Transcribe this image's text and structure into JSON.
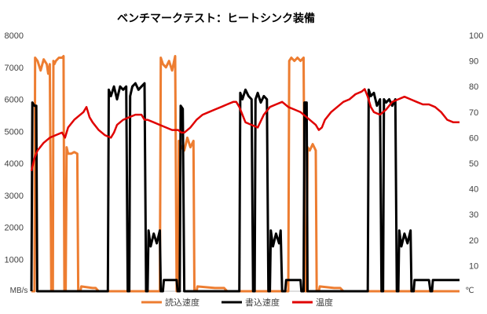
{
  "chart_data": {
    "type": "line",
    "title": "ベンチマークテスト：ヒートシンク装備",
    "left_axis": {
      "unit": "MB/s",
      "ylim": [
        0,
        8000
      ],
      "ticks": [
        "1000",
        "2000",
        "3000",
        "4000",
        "5000",
        "6000",
        "7000",
        "8000"
      ]
    },
    "right_axis": {
      "unit": "℃",
      "ylim": [
        0,
        100
      ],
      "ticks": [
        "10",
        "20",
        "30",
        "40",
        "50",
        "60",
        "70",
        "80",
        "90",
        "100"
      ]
    },
    "grid": false,
    "legend_position": "bottom",
    "series": [
      {
        "name": "読込速度",
        "axis": "left",
        "color": "#ED7D31",
        "points": [
          [
            0,
            0
          ],
          [
            1,
            0
          ],
          [
            1.2,
            7300
          ],
          [
            2,
            7200
          ],
          [
            3,
            6900
          ],
          [
            4,
            7250
          ],
          [
            5,
            7100
          ],
          [
            5.5,
            6800
          ],
          [
            6,
            7100
          ],
          [
            6.5,
            0
          ],
          [
            7,
            0
          ],
          [
            7.2,
            7200
          ],
          [
            7.5,
            7100
          ],
          [
            8,
            7200
          ],
          [
            9,
            7300
          ],
          [
            10,
            7300
          ],
          [
            10.5,
            7350
          ],
          [
            10.8,
            0
          ],
          [
            11.2,
            0
          ],
          [
            11.5,
            4500
          ],
          [
            12,
            4300
          ],
          [
            13,
            4300
          ],
          [
            14,
            4350
          ],
          [
            15,
            4300
          ],
          [
            15.3,
            0
          ],
          [
            16,
            0
          ],
          [
            16.3,
            150
          ],
          [
            20,
            100
          ],
          [
            21,
            100
          ],
          [
            22,
            0
          ],
          [
            42,
            0
          ],
          [
            42.3,
            7300
          ],
          [
            43,
            7100
          ],
          [
            44,
            7000
          ],
          [
            45,
            7200
          ],
          [
            46,
            6900
          ],
          [
            47,
            7350
          ],
          [
            47.5,
            0
          ],
          [
            48,
            0
          ],
          [
            48.2,
            4700
          ],
          [
            49,
            4500
          ],
          [
            50,
            4400
          ],
          [
            51,
            4800
          ],
          [
            52,
            4500
          ],
          [
            53,
            4700
          ],
          [
            53.3,
            0
          ],
          [
            54,
            0
          ],
          [
            54.3,
            150
          ],
          [
            60,
            100
          ],
          [
            63,
            100
          ],
          [
            64,
            0
          ],
          [
            84,
            0
          ],
          [
            84.3,
            7200
          ],
          [
            85,
            7300
          ],
          [
            86,
            7200
          ],
          [
            87,
            7300
          ],
          [
            88,
            7200
          ],
          [
            89,
            7300
          ],
          [
            89.5,
            0
          ],
          [
            90,
            0
          ],
          [
            90.3,
            4500
          ],
          [
            91,
            4400
          ],
          [
            92,
            4600
          ],
          [
            93,
            4400
          ],
          [
            93.3,
            0
          ],
          [
            94,
            0
          ],
          [
            94.3,
            150
          ],
          [
            99,
            100
          ],
          [
            101,
            100
          ],
          [
            102,
            0
          ],
          [
            140,
            0
          ]
        ]
      },
      {
        "name": "書込速度",
        "axis": "left",
        "color": "#000000",
        "points": [
          [
            0,
            0
          ],
          [
            0.3,
            5900
          ],
          [
            1,
            5800
          ],
          [
            1.6,
            5800
          ],
          [
            1.9,
            0
          ],
          [
            25,
            0
          ],
          [
            25.3,
            6300
          ],
          [
            26,
            6100
          ],
          [
            27,
            6400
          ],
          [
            28,
            6000
          ],
          [
            29,
            6400
          ],
          [
            30,
            6300
          ],
          [
            31,
            6400
          ],
          [
            31.5,
            0
          ],
          [
            32,
            0
          ],
          [
            32.3,
            6100
          ],
          [
            33,
            6400
          ],
          [
            34,
            6500
          ],
          [
            35,
            6300
          ],
          [
            36,
            6400
          ],
          [
            37,
            6500
          ],
          [
            37.5,
            0
          ],
          [
            38,
            0
          ],
          [
            38.3,
            1900
          ],
          [
            39,
            1400
          ],
          [
            40,
            1800
          ],
          [
            41,
            1500
          ],
          [
            42,
            1900
          ],
          [
            42.3,
            0
          ],
          [
            43,
            0
          ],
          [
            43.3,
            350
          ],
          [
            46,
            350
          ],
          [
            47.5,
            350
          ],
          [
            47.8,
            0
          ],
          [
            48.5,
            0
          ],
          [
            48.8,
            5800
          ],
          [
            49.5,
            5700
          ],
          [
            50,
            0
          ],
          [
            68,
            0
          ],
          [
            68.3,
            6200
          ],
          [
            69,
            6000
          ],
          [
            70,
            6300
          ],
          [
            71,
            6100
          ],
          [
            72,
            6000
          ],
          [
            72.5,
            0
          ],
          [
            73,
            0
          ],
          [
            73.3,
            6000
          ],
          [
            74,
            6200
          ],
          [
            75,
            5900
          ],
          [
            76,
            6100
          ],
          [
            77,
            6000
          ],
          [
            77.5,
            0
          ],
          [
            78,
            0
          ],
          [
            78.3,
            1900
          ],
          [
            79,
            1400
          ],
          [
            80,
            1800
          ],
          [
            81,
            1500
          ],
          [
            81.5,
            1900
          ],
          [
            82,
            0
          ],
          [
            83,
            0
          ],
          [
            83.3,
            350
          ],
          [
            88,
            350
          ],
          [
            88.3,
            0
          ],
          [
            89,
            0
          ],
          [
            89.3,
            5900
          ],
          [
            90,
            5900
          ],
          [
            90.3,
            0
          ],
          [
            110,
            0
          ],
          [
            110.3,
            6300
          ],
          [
            111,
            6100
          ],
          [
            112,
            6200
          ],
          [
            113,
            5800
          ],
          [
            114,
            6000
          ],
          [
            114.5,
            0
          ],
          [
            115,
            0
          ],
          [
            115.3,
            6000
          ],
          [
            116,
            5900
          ],
          [
            117,
            6000
          ],
          [
            118,
            5800
          ],
          [
            119,
            6000
          ],
          [
            119.5,
            0
          ],
          [
            120,
            0
          ],
          [
            120.3,
            1900
          ],
          [
            121,
            1400
          ],
          [
            122,
            1800
          ],
          [
            123,
            1500
          ],
          [
            124,
            1900
          ],
          [
            124.3,
            0
          ],
          [
            125,
            0
          ],
          [
            125.3,
            350
          ],
          [
            130,
            350
          ],
          [
            130.5,
            0
          ],
          [
            131,
            0
          ],
          [
            131.3,
            350
          ],
          [
            140,
            350
          ]
        ]
      },
      {
        "name": "温度",
        "axis": "right",
        "color": "#E00000",
        "points": [
          [
            0,
            47
          ],
          [
            1,
            52
          ],
          [
            2,
            55
          ],
          [
            4,
            58
          ],
          [
            6,
            60
          ],
          [
            8,
            61
          ],
          [
            10,
            62
          ],
          [
            11,
            60
          ],
          [
            12,
            64
          ],
          [
            14,
            67
          ],
          [
            16,
            69
          ],
          [
            17,
            70
          ],
          [
            18,
            72
          ],
          [
            19,
            68
          ],
          [
            20,
            66
          ],
          [
            22,
            63
          ],
          [
            24,
            61
          ],
          [
            26,
            60
          ],
          [
            27,
            62
          ],
          [
            28,
            65
          ],
          [
            30,
            67
          ],
          [
            32,
            68
          ],
          [
            34,
            69
          ],
          [
            36,
            69
          ],
          [
            37,
            67
          ],
          [
            38,
            67
          ],
          [
            40,
            66
          ],
          [
            42,
            65
          ],
          [
            44,
            64
          ],
          [
            46,
            63
          ],
          [
            48,
            63
          ],
          [
            49,
            62
          ],
          [
            50,
            62
          ],
          [
            52,
            64
          ],
          [
            54,
            67
          ],
          [
            56,
            69
          ],
          [
            58,
            70
          ],
          [
            60,
            71
          ],
          [
            62,
            72
          ],
          [
            64,
            73
          ],
          [
            66,
            74
          ],
          [
            67,
            74
          ],
          [
            68,
            72
          ],
          [
            69,
            69
          ],
          [
            70,
            66
          ],
          [
            72,
            65
          ],
          [
            74,
            64
          ],
          [
            76,
            69
          ],
          [
            78,
            72
          ],
          [
            80,
            73
          ],
          [
            82,
            74
          ],
          [
            83,
            73
          ],
          [
            84,
            72
          ],
          [
            86,
            71
          ],
          [
            88,
            70
          ],
          [
            90,
            68
          ],
          [
            92,
            66
          ],
          [
            93,
            65
          ],
          [
            94,
            63
          ],
          [
            95,
            64
          ],
          [
            96,
            67
          ],
          [
            98,
            70
          ],
          [
            100,
            72
          ],
          [
            102,
            74
          ],
          [
            104,
            75
          ],
          [
            106,
            77
          ],
          [
            108,
            78
          ],
          [
            109,
            79
          ],
          [
            110,
            76
          ],
          [
            111,
            72
          ],
          [
            112,
            70
          ],
          [
            114,
            69
          ],
          [
            116,
            71
          ],
          [
            118,
            74
          ],
          [
            120,
            75
          ],
          [
            122,
            76
          ],
          [
            124,
            75
          ],
          [
            126,
            74
          ],
          [
            128,
            73
          ],
          [
            130,
            73
          ],
          [
            132,
            72
          ],
          [
            134,
            70
          ],
          [
            136,
            67
          ],
          [
            138,
            66
          ],
          [
            140,
            66
          ]
        ]
      }
    ]
  }
}
